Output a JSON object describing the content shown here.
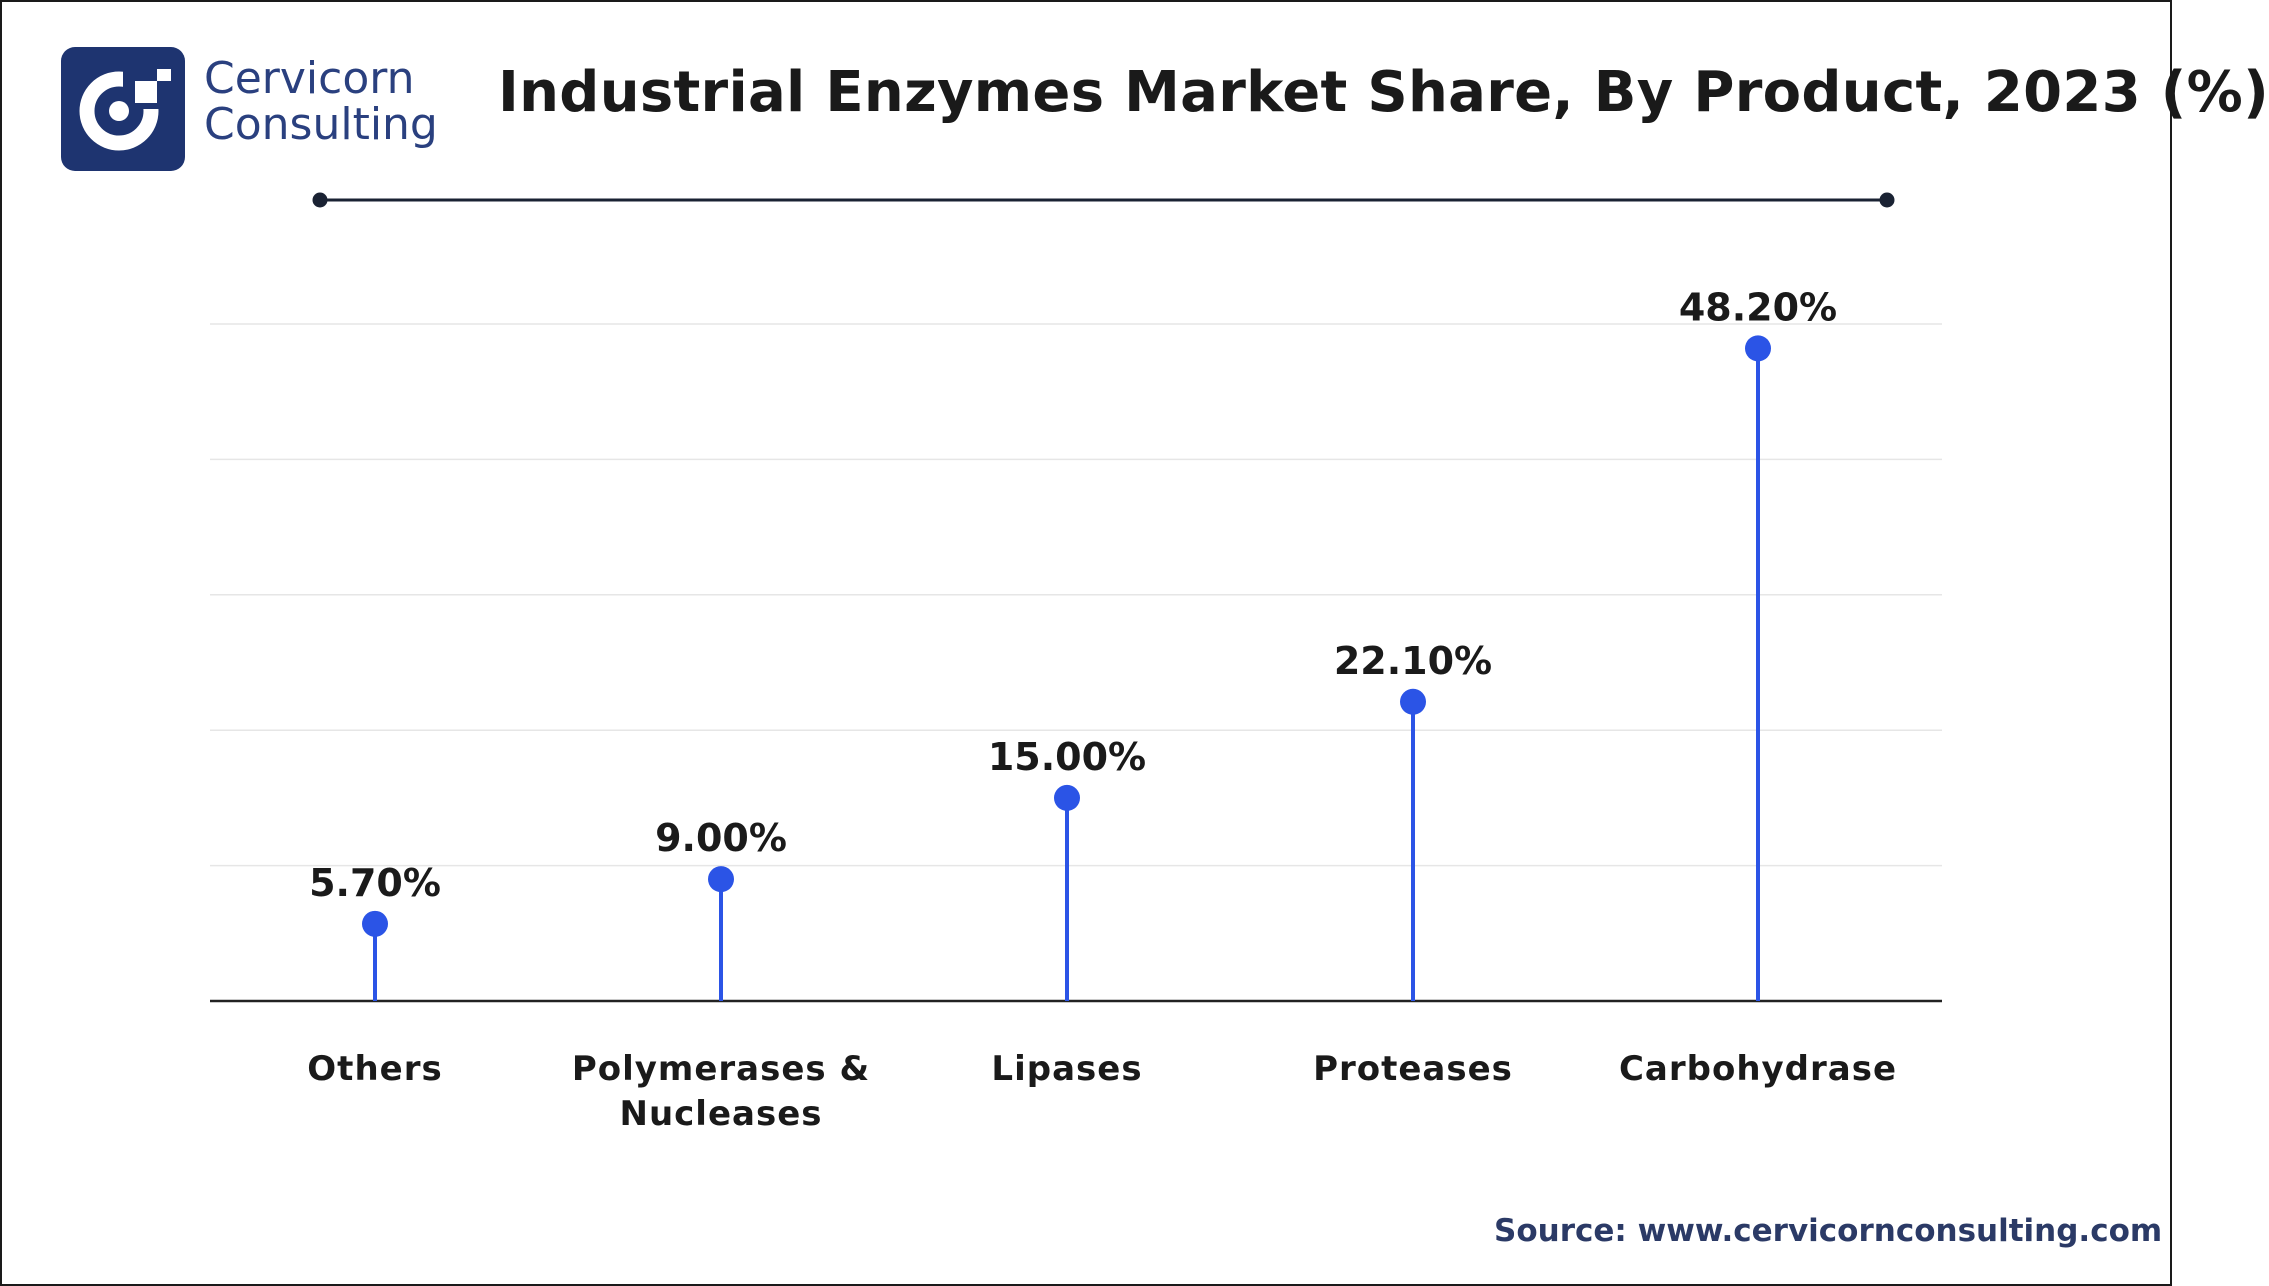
{
  "brand": {
    "line1": "Cervicorn",
    "line2": "Consulting",
    "color": "#2a407f",
    "logo_icon": "cervicorn-c-logo"
  },
  "title": "Industrial Enzymes Market Share, By Product, 2023 (%)",
  "source": "Source: www.cervicornconsulting.com",
  "colors": {
    "stem": "#2b54e6",
    "marker": "#2b54e6",
    "grid": "#e6e6e6",
    "axis": "#222222",
    "text": "#1a1a1a"
  },
  "chart_data": {
    "type": "lollipop",
    "categories": [
      "Others",
      "Polymerases & Nucleases",
      "Lipases",
      "Proteases",
      "Carbohydrase"
    ],
    "category_lines": [
      [
        "Others"
      ],
      [
        "Polymerases &",
        "Nucleases"
      ],
      [
        "Lipases"
      ],
      [
        "Proteases"
      ],
      [
        "Carbohydrase"
      ]
    ],
    "values": [
      5.7,
      9.0,
      15.0,
      22.1,
      48.2
    ],
    "data_labels": [
      "5.70%",
      "9.00%",
      "15.00%",
      "22.10%",
      "48.20%"
    ],
    "ylim": [
      0,
      50
    ],
    "grid": true,
    "gridlines": [
      10,
      20,
      30,
      40,
      50
    ],
    "xlabel": "",
    "ylabel": "",
    "legend": "none"
  }
}
